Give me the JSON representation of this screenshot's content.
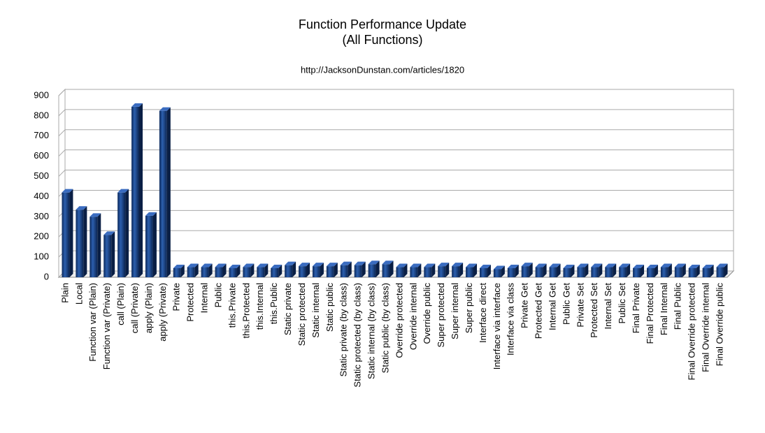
{
  "chart_data": {
    "type": "bar",
    "title": "Function Performance Update",
    "subtitle": "(All Functions)",
    "annotation": "http://JacksonDunstan.com/articles/1820",
    "categories": [
      "Plain",
      "Local",
      "Function var (Plain)",
      "Function var (Private)",
      "call (Plain)",
      "call (Private)",
      "apply (Plain)",
      "apply (Private)",
      "Private",
      "Protected",
      "Internal",
      "Public",
      "this.Private",
      "this.Protected",
      "this.Internal",
      "this.Public",
      "Static private",
      "Static protected",
      "Static internal",
      "Static public",
      "Static private (by class)",
      "Static protected (by class)",
      "Static internal (by class)",
      "Static public (by class)",
      "Override protected",
      "Override internal",
      "Override public",
      "Super protected",
      "Super internal",
      "Super public",
      "Interface direct",
      "Interface via interface",
      "Interface via class",
      "Private Get",
      "Protected Get",
      "Internal Get",
      "Public Get",
      "Private Set",
      "Protected Set",
      "Internal Set",
      "Public Set",
      "Final Private",
      "Final Protected",
      "Final Internal",
      "Final Public",
      "Final Override protected",
      "Final Override internal",
      "Final Override public"
    ],
    "values": [
      420,
      335,
      300,
      210,
      420,
      845,
      305,
      825,
      45,
      50,
      50,
      50,
      45,
      50,
      50,
      45,
      60,
      55,
      55,
      55,
      60,
      60,
      65,
      65,
      50,
      50,
      50,
      55,
      55,
      50,
      45,
      40,
      45,
      55,
      50,
      50,
      45,
      50,
      50,
      50,
      50,
      45,
      45,
      50,
      50,
      45,
      45,
      50
    ],
    "color": "#1f4e96",
    "ylim": [
      0,
      900
    ],
    "yticks": [
      0,
      100,
      200,
      300,
      400,
      500,
      600,
      700,
      800,
      900
    ],
    "grid": true
  }
}
